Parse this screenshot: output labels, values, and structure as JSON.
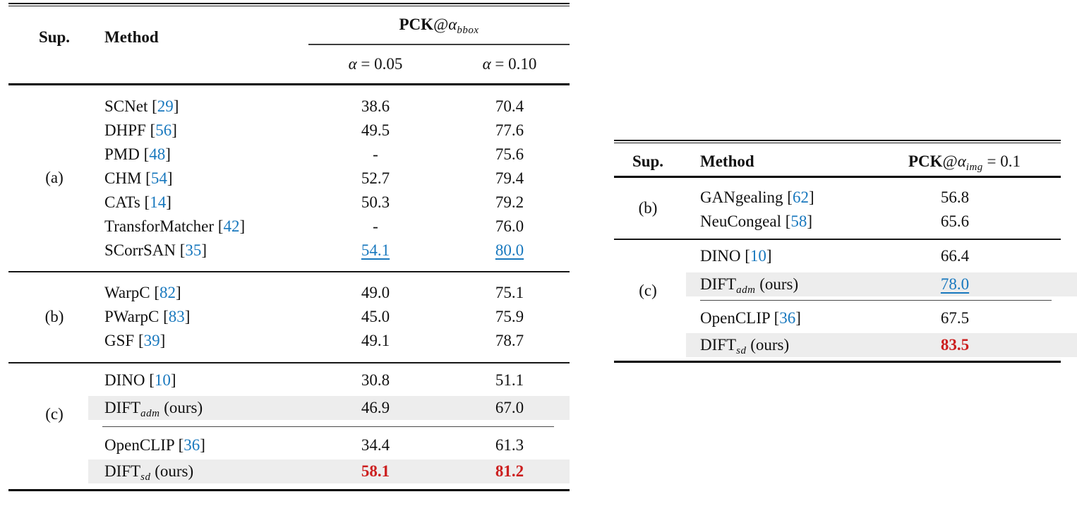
{
  "colors": {
    "citation_blue": "#1878be",
    "second_best_blue": "#1878be",
    "best_red": "#cc1f1f",
    "highlight_gray": "#ededed",
    "rule_black": "#000000"
  },
  "left_table": {
    "header": {
      "sup": "Sup.",
      "method": "Method",
      "pck_bold": "PCK",
      "at": "@",
      "alpha": "α",
      "alpha_sub": "bbox",
      "col1": {
        "alpha": "α",
        "rest": " = 0.05"
      },
      "col2": {
        "alpha": "α",
        "rest": " = 0.10"
      }
    },
    "groups": [
      {
        "label": "(a)",
        "rows": [
          {
            "method": "SCNet",
            "cite": "29",
            "values": [
              "38.6",
              "70.4"
            ]
          },
          {
            "method": "DHPF",
            "cite": "56",
            "values": [
              "49.5",
              "77.6"
            ]
          },
          {
            "method": "PMD",
            "cite": "48",
            "values": [
              "-",
              "75.6"
            ]
          },
          {
            "method": "CHM",
            "cite": "54",
            "values": [
              "52.7",
              "79.4"
            ]
          },
          {
            "method": "CATs",
            "cite": "14",
            "values": [
              "50.3",
              "79.2"
            ]
          },
          {
            "method": "TransforMatcher",
            "cite": "42",
            "values": [
              "-",
              "76.0"
            ]
          },
          {
            "method": "SCorrSAN",
            "cite": "35",
            "values": [
              "54.1",
              "80.0"
            ],
            "vs": "second"
          }
        ]
      },
      {
        "label": "(b)",
        "rows": [
          {
            "method": "WarpC",
            "cite": "82",
            "values": [
              "49.0",
              "75.1"
            ]
          },
          {
            "method": "PWarpC",
            "cite": "83",
            "values": [
              "45.0",
              "75.9"
            ]
          },
          {
            "method": "GSF",
            "cite": "39",
            "values": [
              "49.1",
              "78.7"
            ]
          }
        ]
      },
      {
        "label": "(c)",
        "rows": [
          {
            "method": "DINO",
            "cite": "10",
            "values": [
              "30.8",
              "51.1"
            ]
          },
          {
            "method": "DIFT",
            "sub": "adm",
            "suffix": "(ours)",
            "highlight": true,
            "values": [
              "46.9",
              "67.0"
            ]
          },
          {
            "type": "thinrule"
          },
          {
            "method": "OpenCLIP",
            "cite": "36",
            "values": [
              "34.4",
              "61.3"
            ]
          },
          {
            "method": "DIFT",
            "sub": "sd",
            "suffix": "(ours)",
            "highlight": true,
            "values": [
              "58.1",
              "81.2"
            ],
            "vs": "best"
          }
        ]
      }
    ]
  },
  "right_table": {
    "header": {
      "sup": "Sup.",
      "method": "Method",
      "pck_bold": "PCK",
      "at": "@",
      "alpha": "α",
      "alpha_sub": "img",
      "rest": " = 0.1"
    },
    "groups": [
      {
        "label": "(b)",
        "rows": [
          {
            "method": "GANgealing",
            "cite": "62",
            "values": [
              "56.8"
            ]
          },
          {
            "method": "NeuCongeal",
            "cite": "58",
            "values": [
              "65.6"
            ]
          }
        ]
      },
      {
        "label": "(c)",
        "rows": [
          {
            "method": "DINO",
            "cite": "10",
            "values": [
              "66.4"
            ]
          },
          {
            "method": "DIFT",
            "sub": "adm",
            "suffix": "(ours)",
            "highlight": true,
            "values": [
              "78.0"
            ],
            "vs": "second"
          },
          {
            "type": "thinrule"
          },
          {
            "method": "OpenCLIP",
            "cite": "36",
            "values": [
              "67.5"
            ]
          },
          {
            "method": "DIFT",
            "sub": "sd",
            "suffix": "(ours)",
            "highlight": true,
            "values": [
              "83.5"
            ],
            "vs": "best"
          }
        ]
      }
    ]
  }
}
